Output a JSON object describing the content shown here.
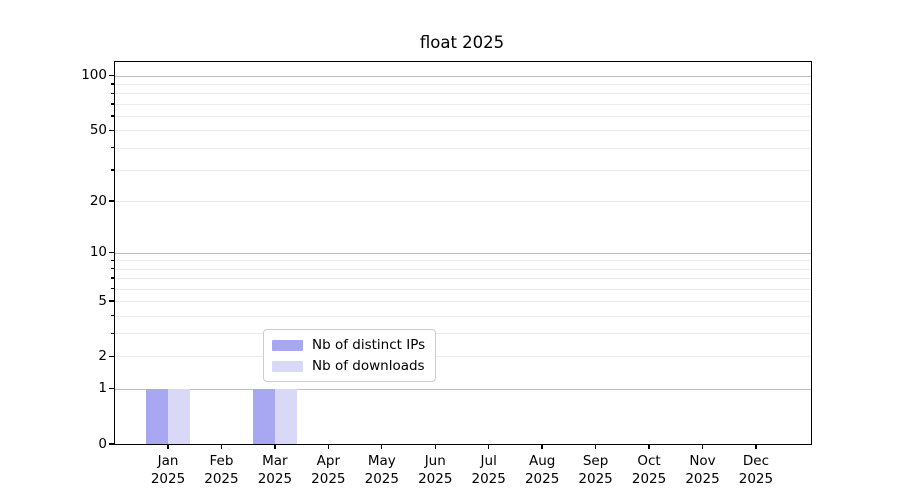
{
  "chart_data": {
    "type": "bar",
    "title": "float 2025",
    "categories": [
      "Jan 2025",
      "Feb 2025",
      "Mar 2025",
      "Apr 2025",
      "May 2025",
      "Jun 2025",
      "Jul 2025",
      "Aug 2025",
      "Sep 2025",
      "Oct 2025",
      "Nov 2025",
      "Dec 2025"
    ],
    "series": [
      {
        "name": "Nb of distinct IPs",
        "color": "#a7a7f2",
        "values": [
          1,
          0,
          1,
          0,
          0,
          0,
          0,
          0,
          0,
          0,
          0,
          0
        ]
      },
      {
        "name": "Nb of downloads",
        "color": "#d9d9f7",
        "values": [
          1,
          0,
          1,
          0,
          0,
          0,
          0,
          0,
          0,
          0,
          0,
          0
        ]
      }
    ],
    "yscale": "log1p",
    "ylim": [
      0,
      118
    ],
    "ytick_labels": [
      0,
      1,
      2,
      5,
      10,
      20,
      50,
      100
    ],
    "ytick_minor": [
      3,
      4,
      6,
      7,
      8,
      9,
      30,
      40,
      60,
      70,
      80,
      90
    ],
    "grid_major": [
      1,
      10,
      100
    ],
    "grid_minor": [
      2,
      3,
      4,
      5,
      6,
      7,
      8,
      9,
      20,
      30,
      40,
      50,
      60,
      70,
      80,
      90
    ],
    "legend_entries": [
      "Nb of distinct IPs",
      "Nb of downloads"
    ],
    "grid_on": true,
    "legend_position": "lower center",
    "background_color": "#ffffff",
    "text_color": "#000000"
  }
}
